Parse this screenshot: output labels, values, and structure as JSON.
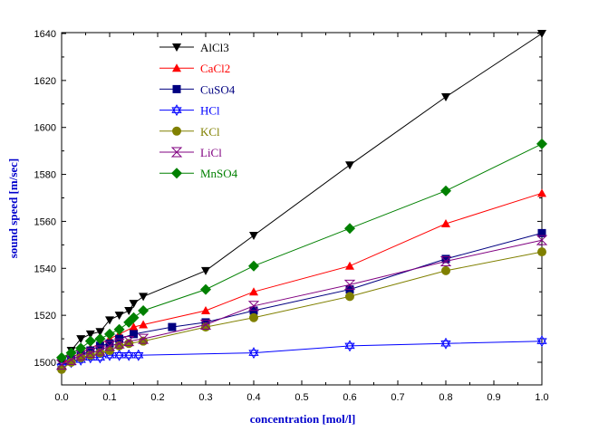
{
  "chart_data": {
    "type": "line",
    "title": "",
    "xlabel": "concentration [mol/l]",
    "ylabel": "sound speed [m/sec]",
    "xlim": [
      0,
      1.0
    ],
    "ylim": [
      1490,
      1640
    ],
    "x_ticks": [
      "0.0",
      "0.1",
      "0.2",
      "0.3",
      "0.4",
      "0.5",
      "0.6",
      "0.7",
      "0.8",
      "0.9",
      "1.0"
    ],
    "y_ticks": [
      "1500",
      "1520",
      "1540",
      "1560",
      "1580",
      "1600",
      "1620",
      "1640"
    ],
    "legend_position": "top-left",
    "series": [
      {
        "name": "AlCl3",
        "color": "#000000",
        "marker": "triangle-down",
        "x": [
          0.0,
          0.02,
          0.04,
          0.06,
          0.08,
          0.1,
          0.12,
          0.14,
          0.15,
          0.17,
          0.3,
          0.4,
          0.6,
          0.8,
          1.0
        ],
        "y": [
          1500,
          1505,
          1510,
          1512,
          1513,
          1518,
          1520,
          1522,
          1525,
          1528,
          1539,
          1554,
          1584,
          1613,
          1640
        ]
      },
      {
        "name": "CaCl2",
        "color": "#ff0000",
        "marker": "triangle-up",
        "x": [
          0.0,
          0.02,
          0.04,
          0.06,
          0.08,
          0.1,
          0.12,
          0.15,
          0.17,
          0.3,
          0.4,
          0.6,
          0.8,
          1.0
        ],
        "y": [
          1499,
          1502,
          1504,
          1506,
          1508,
          1510,
          1512,
          1515,
          1516,
          1522,
          1530,
          1541,
          1559,
          1572
        ]
      },
      {
        "name": "CuSO4",
        "color": "#000080",
        "marker": "square",
        "x": [
          0.0,
          0.02,
          0.04,
          0.06,
          0.08,
          0.1,
          0.12,
          0.15,
          0.23,
          0.3,
          0.4,
          0.6,
          0.8,
          1.0
        ],
        "y": [
          1498,
          1501,
          1503,
          1505,
          1507,
          1508,
          1510,
          1512,
          1515,
          1517,
          1522,
          1531,
          1544,
          1555
        ]
      },
      {
        "name": "HCl",
        "color": "#0000ff",
        "marker": "star",
        "x": [
          0.0,
          0.02,
          0.04,
          0.06,
          0.08,
          0.1,
          0.12,
          0.14,
          0.16,
          0.4,
          0.6,
          0.8,
          1.0
        ],
        "y": [
          1498,
          1500,
          1501,
          1502,
          1502,
          1503,
          1503,
          1503,
          1503,
          1504,
          1507,
          1508,
          1509
        ]
      },
      {
        "name": "KCl",
        "color": "#808000",
        "marker": "circle",
        "x": [
          0.0,
          0.02,
          0.04,
          0.06,
          0.08,
          0.1,
          0.12,
          0.14,
          0.17,
          0.3,
          0.4,
          0.6,
          0.8,
          1.0
        ],
        "y": [
          1497,
          1500,
          1502,
          1503,
          1504,
          1505,
          1507,
          1508,
          1509,
          1515,
          1519,
          1528,
          1539,
          1547
        ]
      },
      {
        "name": "LiCl",
        "color": "#800080",
        "marker": "hourglass",
        "x": [
          0.0,
          0.02,
          0.04,
          0.06,
          0.08,
          0.1,
          0.12,
          0.14,
          0.17,
          0.3,
          0.4,
          0.6,
          0.8,
          1.0
        ],
        "y": [
          1499,
          1501,
          1503,
          1504,
          1505,
          1507,
          1508,
          1509,
          1510,
          1516,
          1524,
          1533,
          1543,
          1552
        ]
      },
      {
        "name": "MnSO4",
        "color": "#008000",
        "marker": "diamond",
        "x": [
          0.0,
          0.02,
          0.04,
          0.06,
          0.08,
          0.1,
          0.12,
          0.14,
          0.15,
          0.17,
          0.3,
          0.4,
          0.6,
          0.8,
          1.0
        ],
        "y": [
          1502,
          1504,
          1506,
          1509,
          1510,
          1512,
          1514,
          1517,
          1519,
          1522,
          1531,
          1541,
          1557,
          1573,
          1593
        ]
      }
    ]
  }
}
